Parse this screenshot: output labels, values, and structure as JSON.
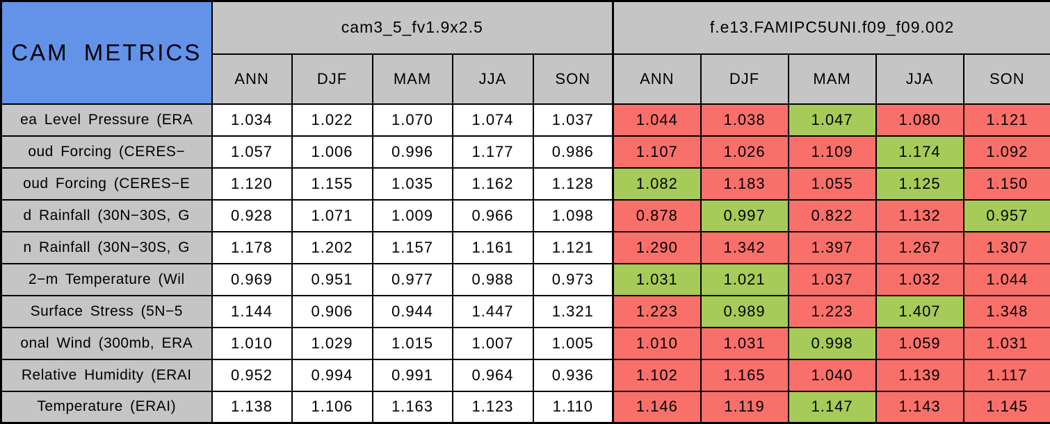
{
  "chart_data": {
    "type": "table",
    "title": "CAM METRICS",
    "column_groups": [
      {
        "label": "cam3_5_fv1.9x2.5",
        "season_columns": [
          "ANN",
          "DJF",
          "MAM",
          "JJA",
          "SON"
        ]
      },
      {
        "label": "f.e13.FAMIPC5UNI.f09_f09.002",
        "season_columns": [
          "ANN",
          "DJF",
          "MAM",
          "JJA",
          "SON"
        ]
      }
    ],
    "rows": [
      {
        "label": "ea Level Pressure (ERA",
        "cam3_5_values": [
          "1.034",
          "1.022",
          "1.070",
          "1.074",
          "1.037"
        ],
        "f_e13_values": [
          "1.044",
          "1.038",
          "1.047",
          "1.080",
          "1.121"
        ],
        "f_e13_cell_colors": [
          "red",
          "red",
          "green",
          "red",
          "red"
        ]
      },
      {
        "label": "oud Forcing (CERES−",
        "cam3_5_values": [
          "1.057",
          "1.006",
          "0.996",
          "1.177",
          "0.986"
        ],
        "f_e13_values": [
          "1.107",
          "1.026",
          "1.109",
          "1.174",
          "1.092"
        ],
        "f_e13_cell_colors": [
          "red",
          "red",
          "red",
          "green",
          "red"
        ]
      },
      {
        "label": "oud Forcing (CERES−E",
        "cam3_5_values": [
          "1.120",
          "1.155",
          "1.035",
          "1.162",
          "1.128"
        ],
        "f_e13_values": [
          "1.082",
          "1.183",
          "1.055",
          "1.125",
          "1.150"
        ],
        "f_e13_cell_colors": [
          "green",
          "red",
          "red",
          "green",
          "red"
        ]
      },
      {
        "label": "d Rainfall (30N−30S, G",
        "cam3_5_values": [
          "0.928",
          "1.071",
          "1.009",
          "0.966",
          "1.098"
        ],
        "f_e13_values": [
          "0.878",
          "0.997",
          "0.822",
          "1.132",
          "0.957"
        ],
        "f_e13_cell_colors": [
          "red",
          "green",
          "red",
          "red",
          "green"
        ]
      },
      {
        "label": "n Rainfall (30N−30S, G",
        "cam3_5_values": [
          "1.178",
          "1.202",
          "1.157",
          "1.161",
          "1.121"
        ],
        "f_e13_values": [
          "1.290",
          "1.342",
          "1.397",
          "1.267",
          "1.307"
        ],
        "f_e13_cell_colors": [
          "red",
          "red",
          "red",
          "red",
          "red"
        ]
      },
      {
        "label": "2−m Temperature (Wil",
        "cam3_5_values": [
          "0.969",
          "0.951",
          "0.977",
          "0.988",
          "0.973"
        ],
        "f_e13_values": [
          "1.031",
          "1.021",
          "1.037",
          "1.032",
          "1.044"
        ],
        "f_e13_cell_colors": [
          "green",
          "green",
          "red",
          "red",
          "red"
        ]
      },
      {
        "label": "Surface Stress (5N−5",
        "cam3_5_values": [
          "1.144",
          "0.906",
          "0.944",
          "1.447",
          "1.321"
        ],
        "f_e13_values": [
          "1.223",
          "0.989",
          "1.223",
          "1.407",
          "1.348"
        ],
        "f_e13_cell_colors": [
          "red",
          "green",
          "red",
          "green",
          "red"
        ]
      },
      {
        "label": "onal Wind (300mb, ERA",
        "cam3_5_values": [
          "1.010",
          "1.029",
          "1.015",
          "1.007",
          "1.005"
        ],
        "f_e13_values": [
          "1.010",
          "1.031",
          "0.998",
          "1.059",
          "1.031"
        ],
        "f_e13_cell_colors": [
          "red",
          "red",
          "green",
          "red",
          "red"
        ]
      },
      {
        "label": "Relative Humidity (ERAI",
        "cam3_5_values": [
          "0.952",
          "0.994",
          "0.991",
          "0.964",
          "0.936"
        ],
        "f_e13_values": [
          "1.102",
          "1.165",
          "1.040",
          "1.139",
          "1.117"
        ],
        "f_e13_cell_colors": [
          "red",
          "red",
          "red",
          "red",
          "red"
        ]
      },
      {
        "label": "Temperature (ERAI)",
        "cam3_5_values": [
          "1.138",
          "1.106",
          "1.163",
          "1.123",
          "1.110"
        ],
        "f_e13_values": [
          "1.146",
          "1.119",
          "1.147",
          "1.143",
          "1.145"
        ],
        "f_e13_cell_colors": [
          "red",
          "red",
          "green",
          "red",
          "red"
        ]
      }
    ]
  },
  "colors": {
    "title_background": "#6392e9",
    "header_background": "#c5c5c5",
    "value_background_default": "#ffffff",
    "red_cell": "#f9706a",
    "green_cell": "#a6cb58",
    "border": "#000000",
    "text": "#000000"
  }
}
